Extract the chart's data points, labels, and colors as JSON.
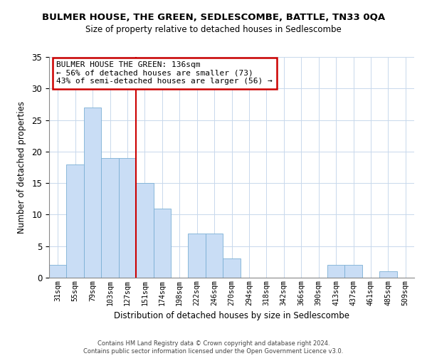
{
  "title": "BULMER HOUSE, THE GREEN, SEDLESCOMBE, BATTLE, TN33 0QA",
  "subtitle": "Size of property relative to detached houses in Sedlescombe",
  "xlabel": "Distribution of detached houses by size in Sedlescombe",
  "ylabel": "Number of detached properties",
  "bin_labels": [
    "31sqm",
    "55sqm",
    "79sqm",
    "103sqm",
    "127sqm",
    "151sqm",
    "174sqm",
    "198sqm",
    "222sqm",
    "246sqm",
    "270sqm",
    "294sqm",
    "318sqm",
    "342sqm",
    "366sqm",
    "390sqm",
    "413sqm",
    "437sqm",
    "461sqm",
    "485sqm",
    "509sqm"
  ],
  "bar_values": [
    2,
    18,
    27,
    19,
    19,
    15,
    11,
    0,
    7,
    7,
    3,
    0,
    0,
    0,
    0,
    0,
    2,
    2,
    0,
    1,
    0
  ],
  "bar_color": "#c9ddf5",
  "bar_edge_color": "#7bafd4",
  "ylim": [
    0,
    35
  ],
  "yticks": [
    0,
    5,
    10,
    15,
    20,
    25,
    30,
    35
  ],
  "property_line_x": 4.5,
  "property_line_color": "#cc0000",
  "annotation_title": "BULMER HOUSE THE GREEN: 136sqm",
  "annotation_line1": "← 56% of detached houses are smaller (73)",
  "annotation_line2": "43% of semi-detached houses are larger (56) →",
  "annotation_box_color": "#ffffff",
  "annotation_box_edge": "#cc0000",
  "footer_line1": "Contains HM Land Registry data © Crown copyright and database right 2024.",
  "footer_line2": "Contains public sector information licensed under the Open Government Licence v3.0.",
  "background_color": "#ffffff",
  "grid_color": "#c8d8ec"
}
